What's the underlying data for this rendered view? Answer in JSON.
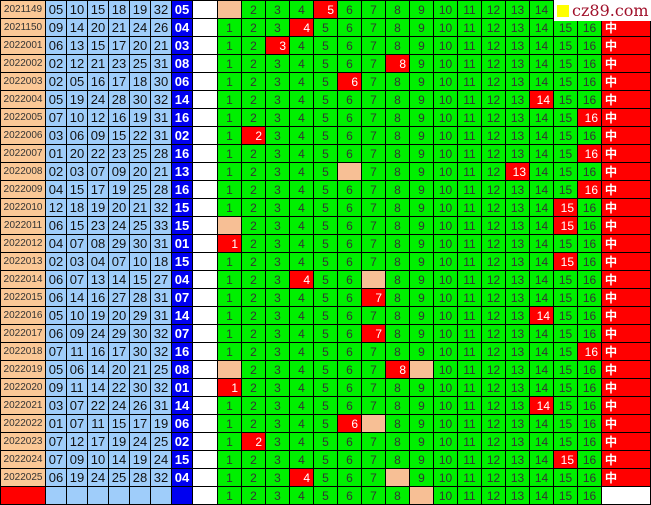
{
  "colors": {
    "period_bg": "#fbc896",
    "number_bg": "#9fcdfa",
    "blue_ball_bg": "#0000f0",
    "grid_bg": "#00f000",
    "hit": "#ff0000",
    "blank": "#f7bf95"
  },
  "watermark": {
    "text": "cz89.com"
  },
  "grid_labels": [
    "1",
    "2",
    "3",
    "4",
    "5",
    "6",
    "7",
    "8",
    "9",
    "10",
    "11",
    "12",
    "13",
    "14",
    "15",
    "16"
  ],
  "hit_mark": "中",
  "rows": [
    {
      "period": "2021149",
      "numbers": [
        "05",
        "10",
        "15",
        "18",
        "19",
        "32"
      ],
      "blue": "05",
      "blank": [
        1
      ]
    },
    {
      "period": "2021150",
      "numbers": [
        "09",
        "14",
        "20",
        "21",
        "24",
        "26"
      ],
      "blue": "04",
      "blank": []
    },
    {
      "period": "2022001",
      "numbers": [
        "06",
        "13",
        "15",
        "17",
        "20",
        "21"
      ],
      "blue": "03",
      "blank": []
    },
    {
      "period": "2022002",
      "numbers": [
        "02",
        "12",
        "21",
        "23",
        "25",
        "31"
      ],
      "blue": "08",
      "blank": []
    },
    {
      "period": "2022003",
      "numbers": [
        "02",
        "05",
        "16",
        "17",
        "18",
        "30"
      ],
      "blue": "06",
      "blank": []
    },
    {
      "period": "2022004",
      "numbers": [
        "05",
        "19",
        "24",
        "28",
        "30",
        "32"
      ],
      "blue": "14",
      "blank": []
    },
    {
      "period": "2022005",
      "numbers": [
        "07",
        "10",
        "12",
        "16",
        "19",
        "31"
      ],
      "blue": "16",
      "blank": []
    },
    {
      "period": "2022006",
      "numbers": [
        "03",
        "06",
        "09",
        "15",
        "22",
        "31"
      ],
      "blue": "02",
      "blank": []
    },
    {
      "period": "2022007",
      "numbers": [
        "01",
        "20",
        "22",
        "23",
        "25",
        "28"
      ],
      "blue": "16",
      "blank": []
    },
    {
      "period": "2022008",
      "numbers": [
        "02",
        "03",
        "07",
        "09",
        "20",
        "21"
      ],
      "blue": "13",
      "blank": [
        6
      ]
    },
    {
      "period": "2022009",
      "numbers": [
        "04",
        "15",
        "17",
        "19",
        "25",
        "28"
      ],
      "blue": "16",
      "blank": []
    },
    {
      "period": "2022010",
      "numbers": [
        "12",
        "18",
        "19",
        "20",
        "21",
        "32"
      ],
      "blue": "15",
      "blank": []
    },
    {
      "period": "2022011",
      "numbers": [
        "06",
        "15",
        "23",
        "24",
        "25",
        "33"
      ],
      "blue": "15",
      "blank": [
        1
      ]
    },
    {
      "period": "2022012",
      "numbers": [
        "04",
        "07",
        "08",
        "29",
        "30",
        "31"
      ],
      "blue": "01",
      "blank": []
    },
    {
      "period": "2022013",
      "numbers": [
        "02",
        "03",
        "04",
        "07",
        "10",
        "18"
      ],
      "blue": "15",
      "blank": []
    },
    {
      "period": "2022014",
      "numbers": [
        "06",
        "07",
        "13",
        "14",
        "15",
        "27"
      ],
      "blue": "04",
      "blank": [
        7
      ]
    },
    {
      "period": "2022015",
      "numbers": [
        "06",
        "14",
        "16",
        "27",
        "28",
        "31"
      ],
      "blue": "07",
      "blank": []
    },
    {
      "period": "2022016",
      "numbers": [
        "05",
        "10",
        "19",
        "20",
        "29",
        "31"
      ],
      "blue": "14",
      "blank": []
    },
    {
      "period": "2022017",
      "numbers": [
        "06",
        "09",
        "24",
        "29",
        "30",
        "32"
      ],
      "blue": "07",
      "blank": []
    },
    {
      "period": "2022018",
      "numbers": [
        "07",
        "11",
        "16",
        "17",
        "30",
        "32"
      ],
      "blue": "16",
      "blank": []
    },
    {
      "period": "2022019",
      "numbers": [
        "05",
        "06",
        "14",
        "20",
        "21",
        "25"
      ],
      "blue": "08",
      "blank": [
        1,
        9
      ]
    },
    {
      "period": "2022020",
      "numbers": [
        "09",
        "11",
        "14",
        "22",
        "30",
        "32"
      ],
      "blue": "01",
      "blank": []
    },
    {
      "period": "2022021",
      "numbers": [
        "03",
        "07",
        "22",
        "24",
        "26",
        "31"
      ],
      "blue": "14",
      "blank": []
    },
    {
      "period": "2022022",
      "numbers": [
        "01",
        "07",
        "11",
        "15",
        "17",
        "19"
      ],
      "blue": "06",
      "blank": [
        7
      ]
    },
    {
      "period": "2022023",
      "numbers": [
        "07",
        "12",
        "17",
        "19",
        "24",
        "25"
      ],
      "blue": "02",
      "blank": []
    },
    {
      "period": "2022024",
      "numbers": [
        "07",
        "09",
        "10",
        "14",
        "19",
        "24"
      ],
      "blue": "15",
      "blank": []
    },
    {
      "period": "2022025",
      "numbers": [
        "06",
        "19",
        "24",
        "25",
        "28",
        "32"
      ],
      "blue": "04",
      "blank": [
        8
      ]
    },
    {
      "period": "",
      "numbers": [
        "",
        "",
        "",
        "",
        "",
        ""
      ],
      "blue": "",
      "blank": [
        9
      ]
    }
  ]
}
